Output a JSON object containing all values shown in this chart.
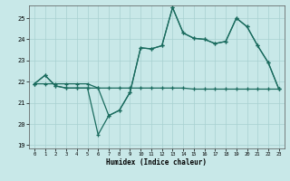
{
  "xlabel": "Humidex (Indice chaleur)",
  "bg_color": "#c8e8e8",
  "grid_color": "#a8d0d0",
  "line_color": "#1a6b5e",
  "xlim": [
    -0.5,
    23.5
  ],
  "ylim": [
    18.85,
    25.6
  ],
  "xticks": [
    0,
    1,
    2,
    3,
    4,
    5,
    6,
    7,
    8,
    9,
    10,
    11,
    12,
    13,
    14,
    15,
    16,
    17,
    18,
    19,
    20,
    21,
    22,
    23
  ],
  "yticks": [
    19,
    20,
    21,
    22,
    23,
    24,
    25
  ],
  "line1_x": [
    0,
    1,
    2,
    3,
    4,
    5,
    6,
    7,
    8,
    9,
    10,
    11,
    12,
    13,
    14,
    15,
    16,
    17,
    18,
    19,
    20,
    21,
    22,
    23
  ],
  "line1_y": [
    21.9,
    22.3,
    21.8,
    21.7,
    21.7,
    21.7,
    21.7,
    20.4,
    20.65,
    21.5,
    23.6,
    23.55,
    23.7,
    25.5,
    24.3,
    24.05,
    24.0,
    23.8,
    23.9,
    25.0,
    24.6,
    23.7,
    22.9,
    21.65
  ],
  "line2_x": [
    0,
    1,
    2,
    3,
    4,
    5,
    6,
    7,
    8,
    9,
    10,
    11,
    12,
    13,
    14,
    15,
    16,
    17,
    18,
    19,
    20,
    21,
    22,
    23
  ],
  "line2_y": [
    21.9,
    22.3,
    21.8,
    21.7,
    21.7,
    21.7,
    19.5,
    20.4,
    20.65,
    21.5,
    23.6,
    23.55,
    23.7,
    25.5,
    24.3,
    24.05,
    24.0,
    23.8,
    23.9,
    25.0,
    24.6,
    23.7,
    22.9,
    21.65
  ],
  "line3_x": [
    0,
    1,
    2,
    3,
    4,
    5,
    6,
    7,
    8,
    9,
    10,
    11,
    12,
    13,
    14,
    15,
    16,
    17,
    18,
    19,
    20,
    21,
    22,
    23
  ],
  "line3_y": [
    21.9,
    21.9,
    21.9,
    21.9,
    21.9,
    21.9,
    21.7,
    21.7,
    21.7,
    21.7,
    21.7,
    21.7,
    21.7,
    21.7,
    21.7,
    21.65,
    21.65,
    21.65,
    21.65,
    21.65,
    21.65,
    21.65,
    21.65,
    21.65
  ]
}
